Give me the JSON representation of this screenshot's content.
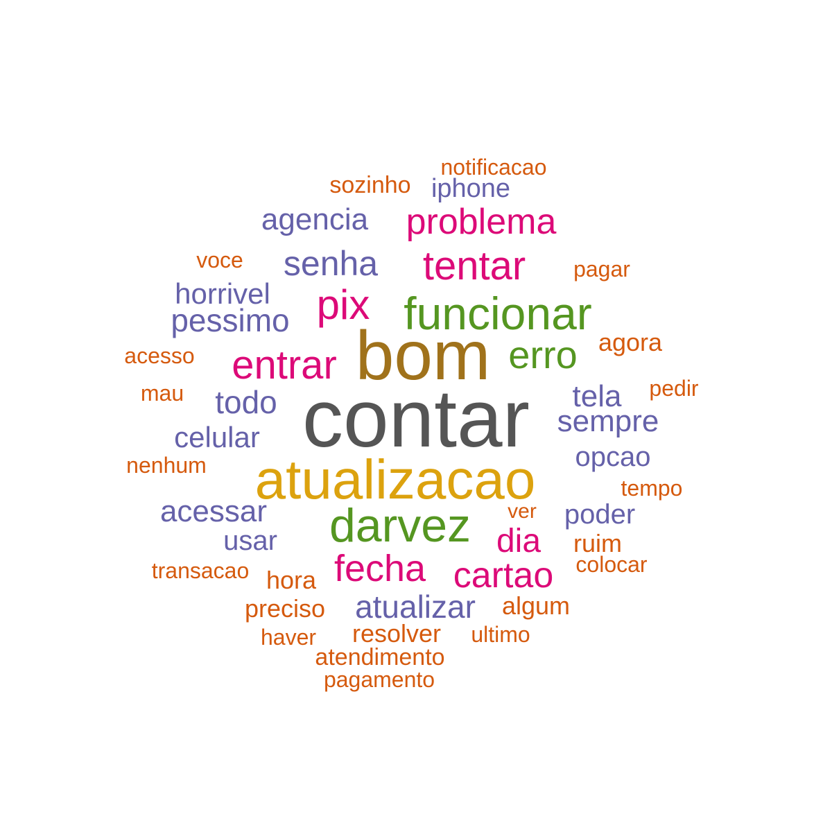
{
  "colors": {
    "gray": "#555555",
    "gold": "#DCA20E",
    "brown": "#A0721B",
    "green": "#559621",
    "pink": "#DC0A78",
    "purple": "#6561A9",
    "orange": "#D55A0E"
  },
  "words": {
    "contar": "contar",
    "atualizacao": "atualizacao",
    "bom": "bom",
    "darvez": "darvez",
    "funcionar": "funcionar",
    "erro": "erro",
    "entrar": "entrar",
    "tentar": "tentar",
    "pix": "pix",
    "problema": "problema",
    "fecha": "fecha",
    "cartao": "cartao",
    "dia": "dia",
    "senha": "senha",
    "agencia": "agencia",
    "todo": "todo",
    "tela": "tela",
    "sempre": "sempre",
    "pessimo": "pessimo",
    "horrivel": "horrivel",
    "celular": "celular",
    "opcao": "opcao",
    "acessar": "acessar",
    "poder": "poder",
    "usar": "usar",
    "atualizar": "atualizar",
    "iphone": "iphone",
    "notificacao": "notificacao",
    "sozinho": "sozinho",
    "voce": "voce",
    "pagar": "pagar",
    "agora": "agora",
    "acesso": "acesso",
    "mau": "mau",
    "pedir": "pedir",
    "nenhum": "nenhum",
    "tempo": "tempo",
    "ver": "ver",
    "ruim": "ruim",
    "colocar": "colocar",
    "transacao": "transacao",
    "hora": "hora",
    "preciso": "preciso",
    "algum": "algum",
    "haver": "haver",
    "resolver": "resolver",
    "ultimo": "ultimo",
    "atendimento": "atendimento",
    "pagamento": "pagamento"
  }
}
